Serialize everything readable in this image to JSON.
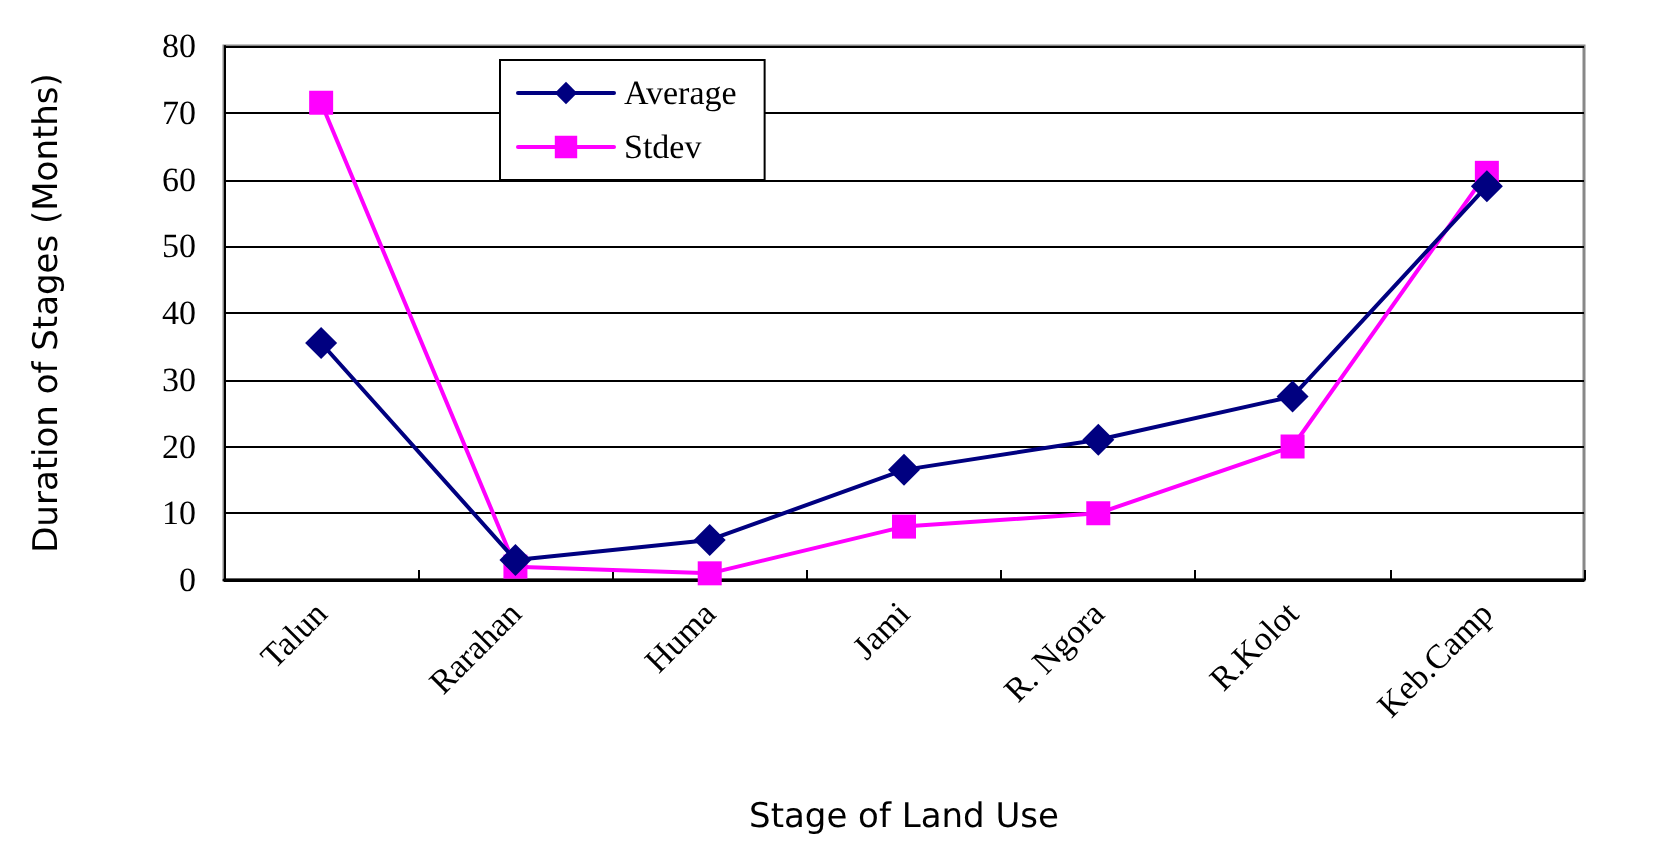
{
  "chart_data": {
    "type": "line",
    "xlabel": "Stage of Land Use",
    "ylabel": "Duration of Stages (Months)",
    "categories": [
      "Talun",
      "Rarahan",
      "Huma",
      "Jami",
      "R. Ngora",
      "R.Kolot",
      "Keb.Camp"
    ],
    "series": [
      {
        "name": "Average",
        "color": "#000080",
        "marker": "diamond",
        "values": [
          35.5,
          3,
          6,
          16.5,
          21,
          27.5,
          59
        ]
      },
      {
        "name": "Stdev",
        "color": "#ff00ff",
        "marker": "square",
        "values": [
          71.5,
          2,
          1,
          8,
          10,
          20,
          61
        ]
      }
    ],
    "ylim": [
      0,
      80
    ],
    "yticks": [
      0,
      10,
      20,
      30,
      40,
      50,
      60,
      70,
      80
    ],
    "grid": "y",
    "legend": "top",
    "line_style": "solid"
  }
}
